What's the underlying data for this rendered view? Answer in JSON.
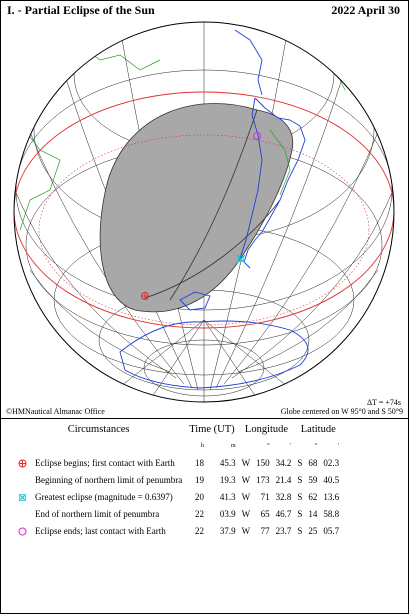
{
  "header": {
    "title": "I. - Partial Eclipse of the Sun",
    "date": "2022 April 30"
  },
  "globe": {
    "delta_t": "ΔT = +74s",
    "centered_on": "Globe centered on W 95°0 and S 50°9",
    "credit": "©HMNautical Almanac Office"
  },
  "colors": {
    "penumbra_fill": "#a8a8a8",
    "limb_circle": "#e03030",
    "coastline": "#1f3fdc",
    "borders": "#2ba02b",
    "grid": "#000000"
  },
  "table": {
    "headers": {
      "circumstances": "Circumstances",
      "time": "Time (UT)",
      "longitude": "Longitude",
      "latitude": "Latitude"
    },
    "units": {
      "h": "h",
      "m": "m",
      "deg1": "°",
      "min1": "'",
      "deg2": "°",
      "min2": "'"
    },
    "rows": [
      {
        "symbol": "red-circle-cross-icon",
        "label": "Eclipse begins; first contact with Earth",
        "h": "18",
        "m": "45.3",
        "lon_dir": "W",
        "lon_deg": "150",
        "lon_min": "34.2",
        "lat_dir": "S",
        "lat_deg": "68",
        "lat_min": "02.3"
      },
      {
        "symbol": "",
        "label": "Beginning of northern limit of penumbra",
        "h": "19",
        "m": "19.3",
        "lon_dir": "W",
        "lon_deg": "173",
        "lon_min": "21.4",
        "lat_dir": "S",
        "lat_deg": "59",
        "lat_min": "40.5"
      },
      {
        "symbol": "cyan-x-icon",
        "label": "Greatest eclipse (magnitude = 0.6397)",
        "h": "20",
        "m": "41.3",
        "lon_dir": "W",
        "lon_deg": "71",
        "lon_min": "32.8",
        "lat_dir": "S",
        "lat_deg": "62",
        "lat_min": "13.6"
      },
      {
        "symbol": "",
        "label": "End of northern limit of penumbra",
        "h": "22",
        "m": "03.9",
        "lon_dir": "W",
        "lon_deg": "65",
        "lon_min": "46.7",
        "lat_dir": "S",
        "lat_deg": "14",
        "lat_min": "58.8"
      },
      {
        "symbol": "magenta-circle-icon",
        "label": "Eclipse ends; last contact with Earth",
        "h": "22",
        "m": "37.9",
        "lon_dir": "W",
        "lon_deg": "77",
        "lon_min": "23.7",
        "lat_dir": "S",
        "lat_deg": "25",
        "lat_min": "05.7"
      }
    ]
  }
}
